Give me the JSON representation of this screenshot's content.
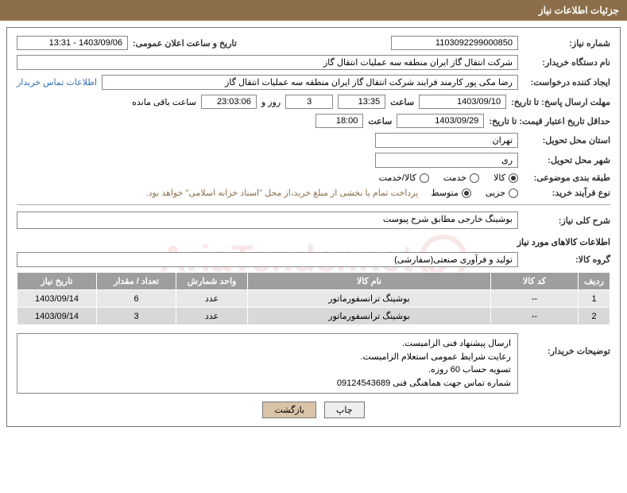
{
  "header": "جزئیات اطلاعات نیاز",
  "fields": {
    "need_no_label": "شماره نیاز:",
    "need_no": "1103092299000850",
    "announce_label": "تاریخ و ساعت اعلان عمومی:",
    "announce": "1403/09/06 - 13:31",
    "buyer_org_label": "نام دستگاه خریدار:",
    "buyer_org": "شرکت انتقال گاز ایران منطقه سه عملیات انتقال گاز",
    "requester_label": "ایجاد کننده درخواست:",
    "requester": "رضا مکی پور کارمند فرایند شرکت انتقال گاز ایران منطقه سه عملیات انتقال گاز",
    "contact_link": "اطلاعات تماس خریدار",
    "reply_deadline_label": "مهلت ارسال پاسخ: تا تاریخ:",
    "reply_date": "1403/09/10",
    "time_label": "ساعت",
    "reply_time": "13:35",
    "days": "3",
    "days_label": "روز و",
    "remaining_time": "23:03:06",
    "remaining_label": "ساعت باقی مانده",
    "price_valid_label": "حداقل تاریخ اعتبار قیمت: تا تاریخ:",
    "price_valid_date": "1403/09/29",
    "price_valid_time": "18:00",
    "province_label": "استان محل تحویل:",
    "province": "تهران",
    "city_label": "شهر محل تحویل:",
    "city": "ری",
    "category_label": "طبقه بندی موضوعی:",
    "process_label": "نوع فرآیند خرید:",
    "process_note": "پرداخت تمام یا بخشی از مبلغ خرید،از محل \"اسناد خزانه اسلامی\" خواهد بود.",
    "overall_label": "شرح کلی نیاز:",
    "overall": "بوشینگ خارجی مطابق شرح پیوست",
    "goods_section": "اطلاعات کالاهای مورد نیاز",
    "group_label": "گروه کالا:",
    "group": "تولید و فرآوری صنعتی(سفارشی)",
    "table": {
      "headers": [
        "ردیف",
        "کد کالا",
        "نام کالا",
        "واحد شمارش",
        "تعداد / مقدار",
        "تاریخ نیاز"
      ],
      "rows": [
        [
          "1",
          "--",
          "بوشینگ ترانسفورماتور",
          "عدد",
          "6",
          "1403/09/14"
        ],
        [
          "2",
          "--",
          "بوشینگ ترانسفورماتور",
          "عدد",
          "3",
          "1403/09/14"
        ]
      ],
      "col_widths": [
        "40px",
        "110px",
        "auto",
        "90px",
        "100px",
        "100px"
      ]
    },
    "buyer_note_label": "توضیحات خریدار:",
    "buyer_note": "ارسال پیشنهاد فنی الزامیست.\nرعایت شرایط عمومی استعلام الزامیست.\nتسویه حساب 60 روزه.\nشماره تماس جهت هماهنگی فنی 09124543689",
    "btn_print": "چاپ",
    "btn_back": "بازگشت"
  },
  "radios": {
    "category": [
      {
        "label": "کالا",
        "checked": true
      },
      {
        "label": "خدمت",
        "checked": false
      },
      {
        "label": "کالا/خدمت",
        "checked": false
      }
    ],
    "process": [
      {
        "label": "جزیی",
        "checked": false
      },
      {
        "label": "متوسط",
        "checked": true
      }
    ]
  },
  "watermark": "AriaTender.net",
  "colors": {
    "header_bg": "#8c6f4a",
    "th_bg": "#9e9e9e",
    "row_odd": "#e8e8e8",
    "row_even": "#d8d8d8",
    "link": "#2f6fb0",
    "note": "#8c6f4a"
  }
}
